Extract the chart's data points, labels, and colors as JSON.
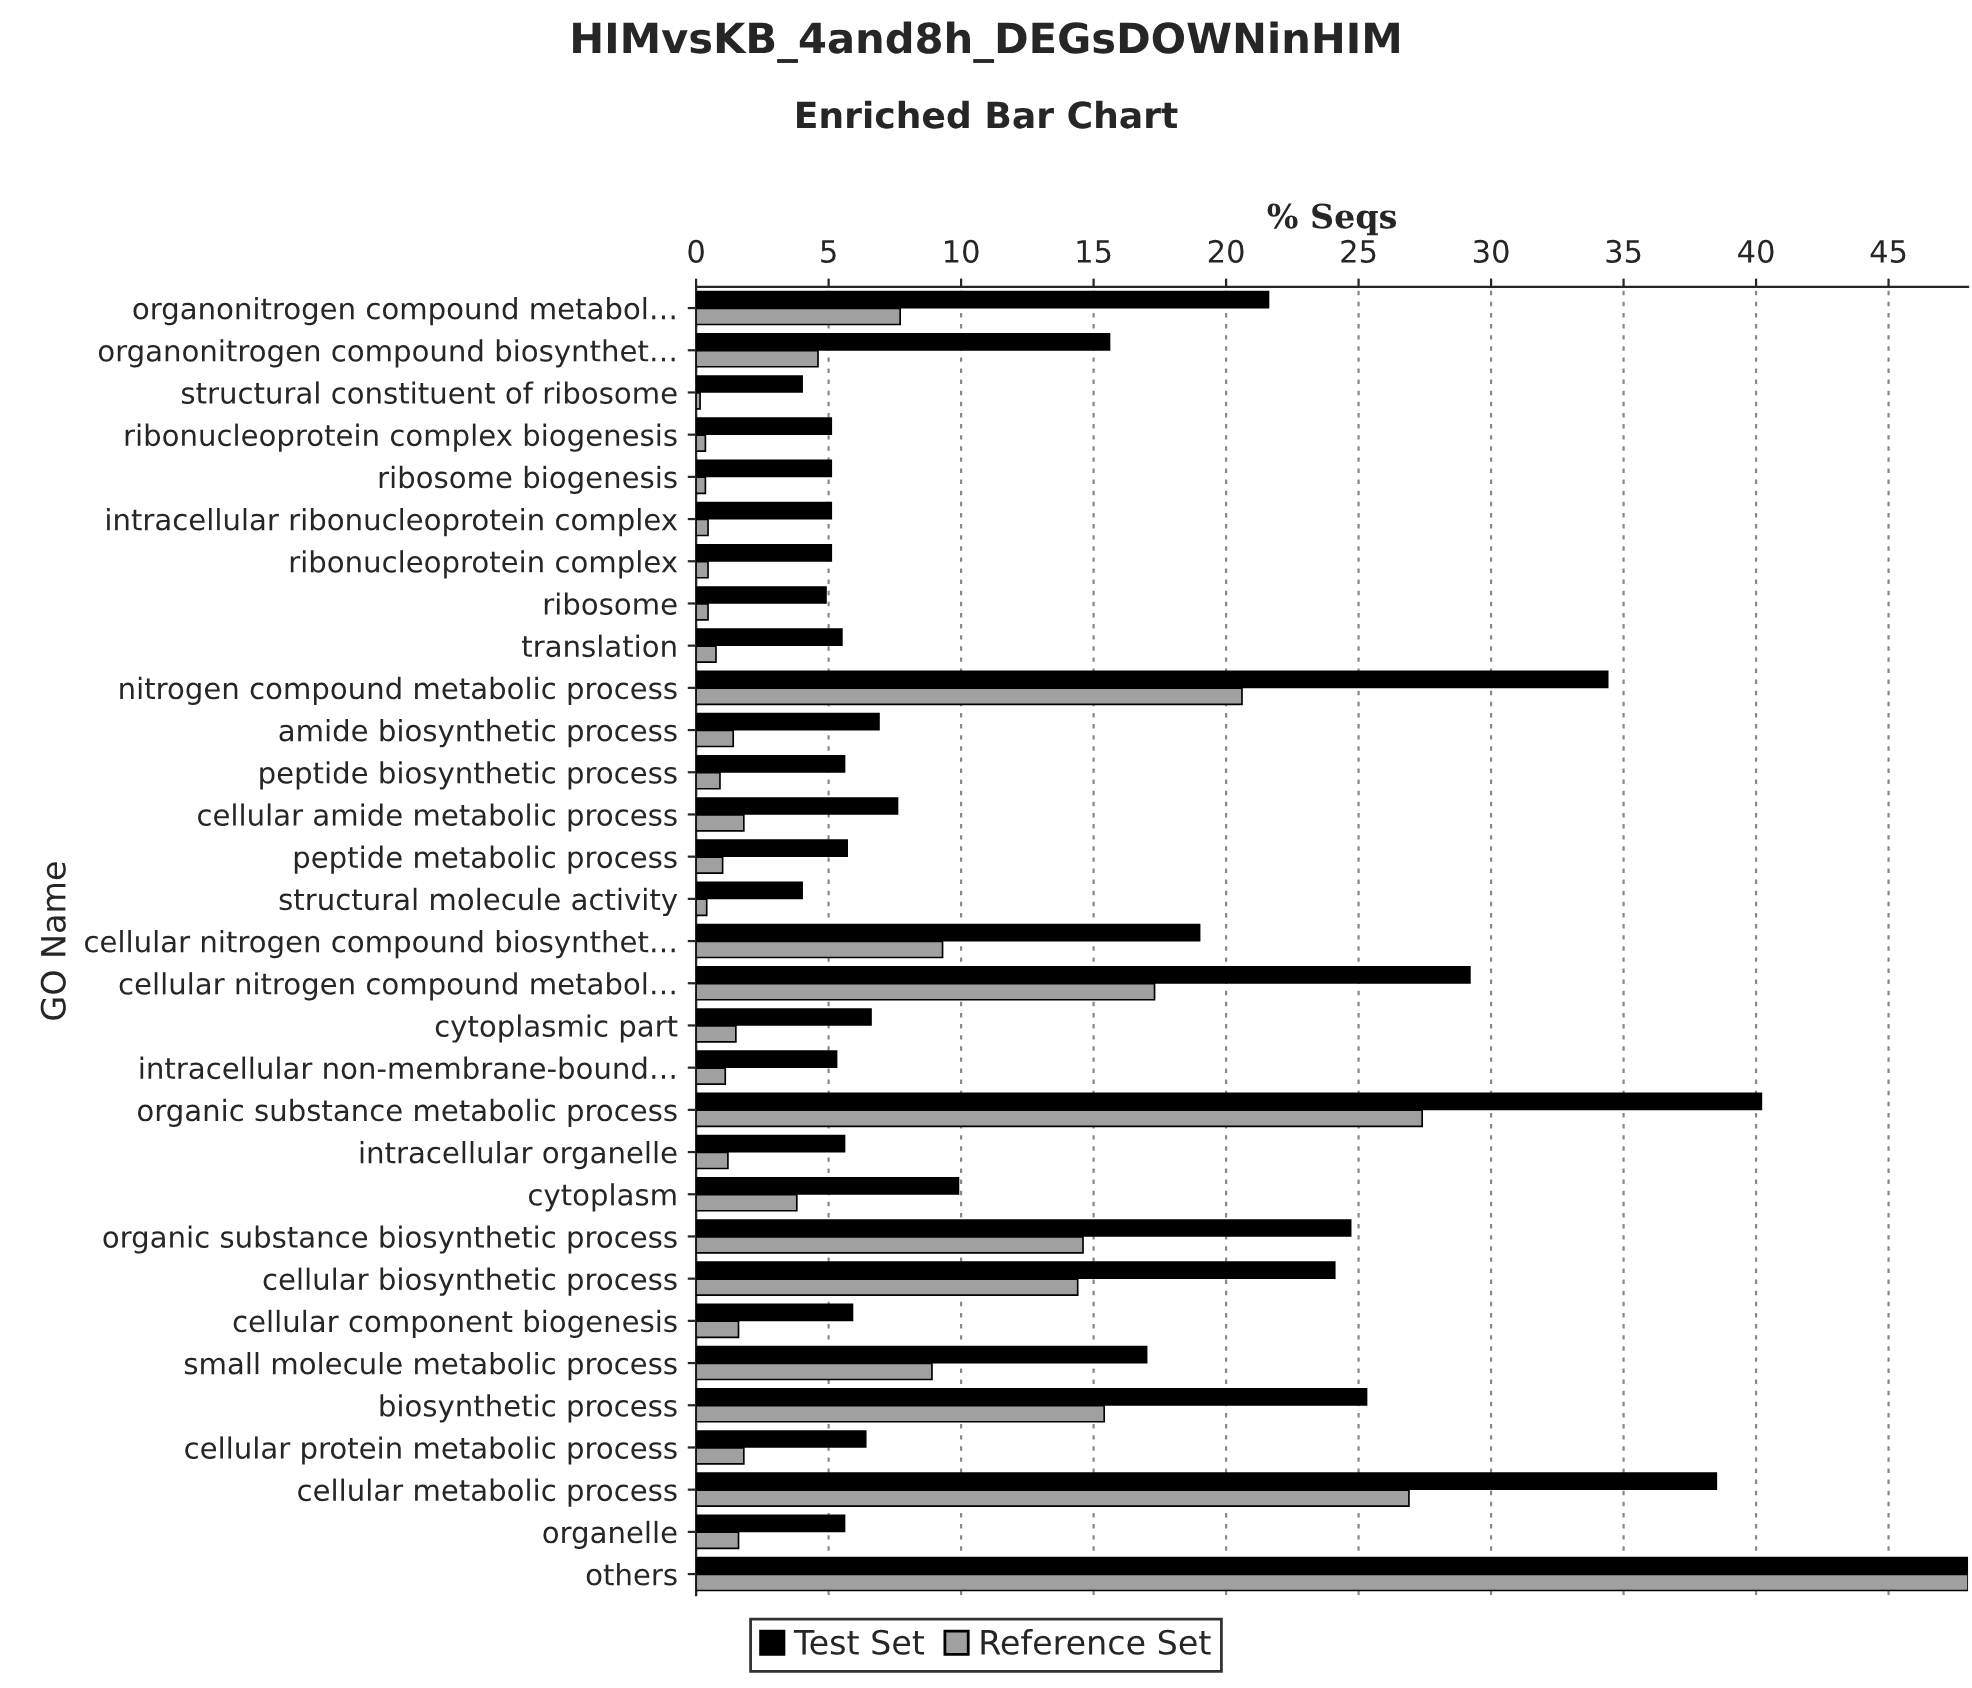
{
  "chart_data": {
    "type": "bar",
    "orientation": "horizontal",
    "title": "HIMvsKB_4and8h_DEGsDOWNinHIM",
    "subtitle": "Enriched Bar Chart",
    "xlabel": "% Seqs",
    "ylabel": "GO Name",
    "categories": [
      "organonitrogen compound metabol…",
      "organonitrogen compound biosynthet…",
      "structural constituent of ribosome",
      "ribonucleoprotein complex biogenesis",
      "ribosome biogenesis",
      "intracellular ribonucleoprotein complex",
      "ribonucleoprotein complex",
      "ribosome",
      "translation",
      "nitrogen compound metabolic process",
      "amide biosynthetic process",
      "peptide biosynthetic process",
      "cellular amide metabolic process",
      "peptide metabolic process",
      "structural molecule activity",
      "cellular nitrogen compound biosynthet…",
      "cellular nitrogen compound metabol…",
      "cytoplasmic part",
      "intracellular non-membrane-bound…",
      "organic substance metabolic process",
      "intracellular organelle",
      "cytoplasm",
      "organic substance biosynthetic process",
      "cellular biosynthetic process",
      "cellular component biogenesis",
      "small molecule metabolic process",
      "biosynthetic process",
      "cellular protein metabolic process",
      "cellular metabolic process",
      "organelle",
      "others"
    ],
    "series": [
      {
        "name": "Test Set",
        "color": "#000000",
        "values": [
          21.6,
          15.6,
          4.0,
          5.1,
          5.1,
          5.1,
          5.1,
          4.9,
          5.5,
          34.4,
          6.9,
          5.6,
          7.6,
          5.7,
          4.0,
          19.0,
          29.2,
          6.6,
          5.3,
          40.2,
          5.6,
          9.9,
          24.7,
          24.1,
          5.9,
          17.0,
          25.3,
          6.4,
          38.5,
          5.6,
          48
        ]
      },
      {
        "name": "Reference Set",
        "color": "#a0a0a0",
        "values": [
          7.7,
          4.6,
          0.15,
          0.35,
          0.35,
          0.45,
          0.45,
          0.45,
          0.75,
          20.6,
          1.4,
          0.9,
          1.8,
          1.0,
          0.4,
          9.3,
          17.3,
          1.5,
          1.1,
          27.4,
          1.2,
          3.8,
          14.6,
          14.4,
          1.6,
          8.9,
          15.4,
          1.8,
          26.9,
          1.6,
          48
        ]
      }
    ],
    "xlim": [
      0,
      48
    ],
    "xticks": [
      0,
      5,
      10,
      15,
      20,
      25,
      30,
      35,
      40,
      45
    ],
    "grid": "x",
    "legend": "bottom"
  }
}
